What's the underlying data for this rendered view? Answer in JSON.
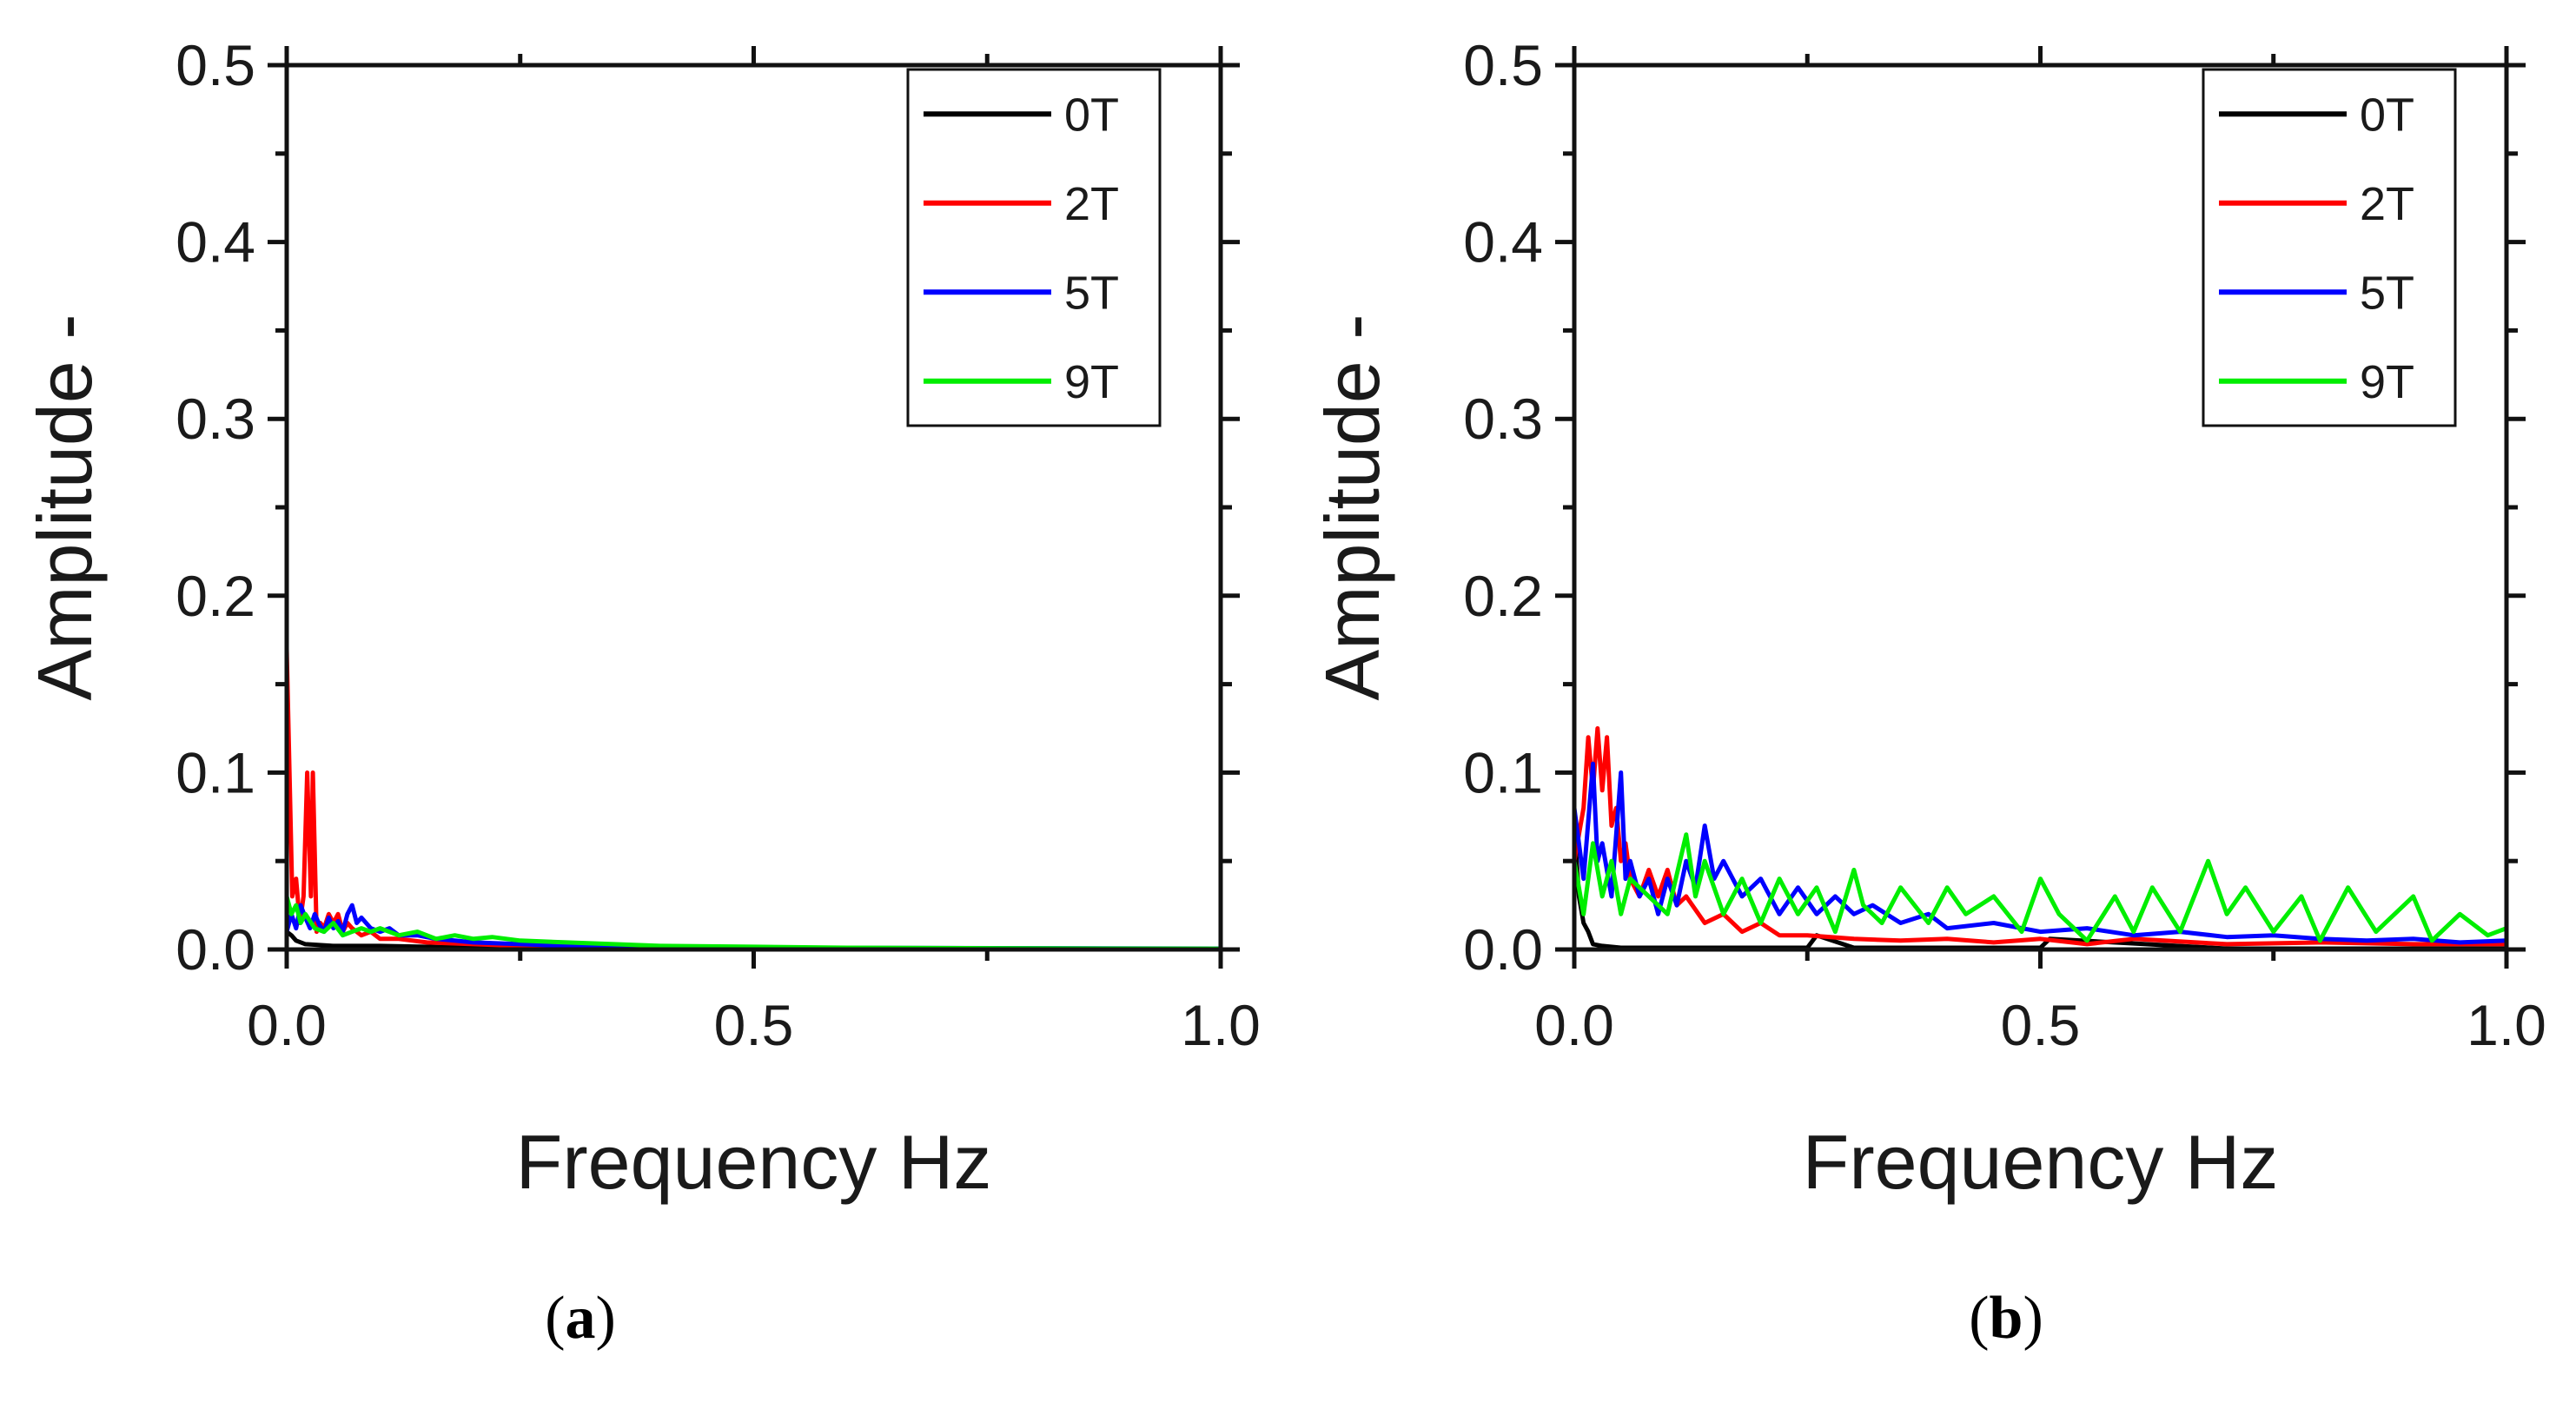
{
  "chart_data": [
    {
      "type": "line",
      "panel_label": "a",
      "title": "",
      "xlabel": "Frequency Hz",
      "ylabel": "Amplitude -",
      "xlim": [
        0,
        1.0
      ],
      "ylim": [
        0,
        0.5
      ],
      "xticks": [
        "0.0",
        "0.5",
        "1.0"
      ],
      "yticks": [
        "0.0",
        "0.1",
        "0.2",
        "0.3",
        "0.4",
        "0.5"
      ],
      "legend_position": "top-right",
      "series": [
        {
          "name": "0T",
          "color": "#000000",
          "x": [
            0,
            0.005,
            0.01,
            0.02,
            0.05,
            0.1,
            0.2,
            0.5,
            1.0
          ],
          "y": [
            0.01,
            0.008,
            0.005,
            0.003,
            0.002,
            0.002,
            0.001,
            0.0005,
            0.0
          ]
        },
        {
          "name": "2T",
          "color": "#ff0000",
          "x": [
            0,
            0.003,
            0.006,
            0.01,
            0.014,
            0.018,
            0.022,
            0.026,
            0.028,
            0.032,
            0.036,
            0.04,
            0.045,
            0.05,
            0.055,
            0.06,
            0.065,
            0.07,
            0.08,
            0.09,
            0.1,
            0.12,
            0.15,
            0.2,
            0.25,
            0.3,
            0.4,
            0.5,
            0.7,
            1.0
          ],
          "y": [
            0.17,
            0.1,
            0.03,
            0.04,
            0.015,
            0.03,
            0.1,
            0.03,
            0.1,
            0.01,
            0.015,
            0.012,
            0.02,
            0.015,
            0.02,
            0.01,
            0.015,
            0.012,
            0.008,
            0.01,
            0.006,
            0.006,
            0.004,
            0.003,
            0.002,
            0.001,
            0.0008,
            0.0005,
            0.0003,
            0.0002
          ]
        },
        {
          "name": "5T",
          "color": "#0000ff",
          "x": [
            0,
            0.005,
            0.01,
            0.015,
            0.02,
            0.025,
            0.03,
            0.035,
            0.04,
            0.045,
            0.05,
            0.055,
            0.06,
            0.065,
            0.07,
            0.075,
            0.08,
            0.09,
            0.1,
            0.11,
            0.12,
            0.14,
            0.16,
            0.18,
            0.2,
            0.25,
            0.3,
            0.4,
            0.5,
            0.7,
            1.0
          ],
          "y": [
            0.01,
            0.02,
            0.012,
            0.025,
            0.018,
            0.012,
            0.02,
            0.014,
            0.01,
            0.018,
            0.012,
            0.016,
            0.01,
            0.02,
            0.025,
            0.015,
            0.018,
            0.012,
            0.01,
            0.012,
            0.008,
            0.008,
            0.006,
            0.005,
            0.004,
            0.003,
            0.002,
            0.0015,
            0.001,
            0.0008,
            0.0005
          ]
        },
        {
          "name": "9T",
          "color": "#00ee00",
          "x": [
            0,
            0.005,
            0.01,
            0.015,
            0.02,
            0.03,
            0.04,
            0.05,
            0.06,
            0.07,
            0.08,
            0.09,
            0.1,
            0.12,
            0.14,
            0.16,
            0.18,
            0.2,
            0.22,
            0.25,
            0.3,
            0.35,
            0.4,
            0.5,
            0.6,
            0.7,
            0.8,
            1.0
          ],
          "y": [
            0.03,
            0.02,
            0.025,
            0.015,
            0.02,
            0.012,
            0.01,
            0.015,
            0.008,
            0.01,
            0.012,
            0.01,
            0.012,
            0.008,
            0.01,
            0.006,
            0.008,
            0.006,
            0.007,
            0.005,
            0.004,
            0.003,
            0.002,
            0.0015,
            0.001,
            0.0008,
            0.0006,
            0.0004
          ]
        }
      ]
    },
    {
      "type": "line",
      "panel_label": "b",
      "title": "",
      "xlabel": "Frequency Hz",
      "ylabel": "Amplitude -",
      "xlim": [
        0,
        1.0
      ],
      "ylim": [
        0,
        0.5
      ],
      "xticks": [
        "0.0",
        "0.5",
        "1.0"
      ],
      "yticks": [
        "0.0",
        "0.1",
        "0.2",
        "0.3",
        "0.4",
        "0.5"
      ],
      "legend_position": "top-right",
      "series": [
        {
          "name": "0T",
          "color": "#000000",
          "x": [
            0,
            0.005,
            0.01,
            0.015,
            0.02,
            0.03,
            0.05,
            0.1,
            0.2,
            0.25,
            0.26,
            0.3,
            0.5,
            0.51,
            0.7,
            1.0
          ],
          "y": [
            0.07,
            0.03,
            0.015,
            0.01,
            0.003,
            0.002,
            0.001,
            0.001,
            0.001,
            0.001,
            0.008,
            0.001,
            0.001,
            0.006,
            0.0005,
            0.0005
          ]
        },
        {
          "name": "2T",
          "color": "#ff0000",
          "x": [
            0,
            0.01,
            0.015,
            0.02,
            0.025,
            0.03,
            0.035,
            0.04,
            0.045,
            0.05,
            0.055,
            0.06,
            0.07,
            0.08,
            0.09,
            0.1,
            0.11,
            0.12,
            0.14,
            0.16,
            0.18,
            0.2,
            0.22,
            0.25,
            0.3,
            0.35,
            0.4,
            0.45,
            0.5,
            0.55,
            0.6,
            0.7,
            0.8,
            0.9,
            1.0
          ],
          "y": [
            0.05,
            0.08,
            0.12,
            0.09,
            0.125,
            0.09,
            0.12,
            0.07,
            0.08,
            0.05,
            0.06,
            0.04,
            0.03,
            0.045,
            0.03,
            0.045,
            0.025,
            0.03,
            0.015,
            0.02,
            0.01,
            0.015,
            0.008,
            0.008,
            0.006,
            0.005,
            0.006,
            0.004,
            0.006,
            0.003,
            0.006,
            0.003,
            0.004,
            0.003,
            0.003
          ]
        },
        {
          "name": "5T",
          "color": "#0000ff",
          "x": [
            0,
            0.01,
            0.02,
            0.025,
            0.03,
            0.04,
            0.05,
            0.055,
            0.06,
            0.07,
            0.08,
            0.09,
            0.1,
            0.11,
            0.12,
            0.13,
            0.14,
            0.15,
            0.16,
            0.18,
            0.2,
            0.22,
            0.24,
            0.26,
            0.28,
            0.3,
            0.32,
            0.35,
            0.38,
            0.4,
            0.45,
            0.5,
            0.55,
            0.6,
            0.65,
            0.7,
            0.75,
            0.8,
            0.85,
            0.9,
            0.95,
            1.0
          ],
          "y": [
            0.08,
            0.04,
            0.105,
            0.05,
            0.06,
            0.03,
            0.1,
            0.04,
            0.05,
            0.03,
            0.04,
            0.02,
            0.04,
            0.025,
            0.05,
            0.035,
            0.07,
            0.04,
            0.05,
            0.03,
            0.04,
            0.02,
            0.035,
            0.02,
            0.03,
            0.02,
            0.025,
            0.015,
            0.02,
            0.012,
            0.015,
            0.01,
            0.012,
            0.008,
            0.01,
            0.007,
            0.008,
            0.006,
            0.005,
            0.006,
            0.004,
            0.005
          ]
        },
        {
          "name": "9T",
          "color": "#00ee00",
          "x": [
            0,
            0.01,
            0.02,
            0.03,
            0.04,
            0.05,
            0.06,
            0.08,
            0.1,
            0.12,
            0.13,
            0.14,
            0.16,
            0.18,
            0.2,
            0.22,
            0.24,
            0.26,
            0.28,
            0.3,
            0.31,
            0.33,
            0.35,
            0.38,
            0.4,
            0.42,
            0.45,
            0.48,
            0.5,
            0.52,
            0.55,
            0.58,
            0.6,
            0.62,
            0.65,
            0.68,
            0.7,
            0.72,
            0.75,
            0.78,
            0.8,
            0.83,
            0.86,
            0.9,
            0.92,
            0.95,
            0.98,
            1.0
          ],
          "y": [
            0.05,
            0.02,
            0.06,
            0.03,
            0.05,
            0.02,
            0.04,
            0.03,
            0.02,
            0.065,
            0.03,
            0.05,
            0.02,
            0.04,
            0.015,
            0.04,
            0.02,
            0.035,
            0.01,
            0.045,
            0.025,
            0.015,
            0.035,
            0.015,
            0.035,
            0.02,
            0.03,
            0.01,
            0.04,
            0.02,
            0.005,
            0.03,
            0.01,
            0.035,
            0.01,
            0.05,
            0.02,
            0.035,
            0.01,
            0.03,
            0.005,
            0.035,
            0.01,
            0.03,
            0.005,
            0.02,
            0.008,
            0.012
          ]
        }
      ]
    }
  ]
}
